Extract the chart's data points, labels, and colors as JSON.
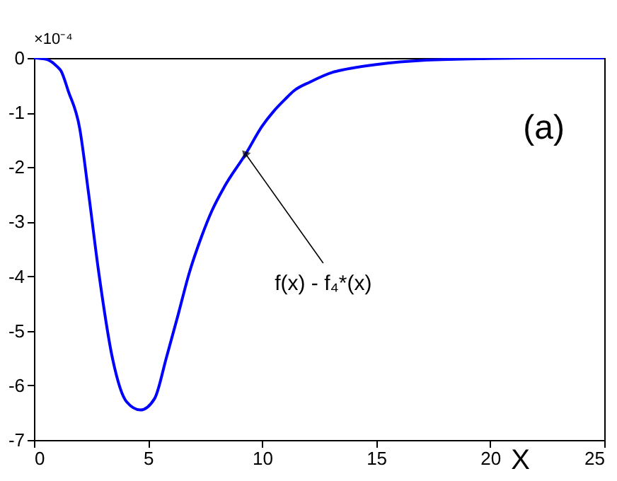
{
  "chart_data": {
    "type": "line",
    "xlabel": "X",
    "x": [
      0,
      0.5,
      1,
      1.19,
      1.5,
      2.0,
      2.4,
      2.83,
      3.44,
      4.06,
      4.67,
      5.29,
      5.8,
      6.31,
      6.8,
      7.34,
      7.8,
      8.36,
      9.28,
      10,
      10.5,
      11.0,
      11.4,
      12.1,
      13.1,
      13.5,
      15,
      17.2,
      20,
      22.5,
      25
    ],
    "series": [
      {
        "color": "#0000ff",
        "values": [
          0,
          -0.02,
          -0.15,
          -0.24,
          -0.6,
          -1.28,
          -2.5,
          -3.9,
          -5.5,
          -6.3,
          -6.45,
          -6.24,
          -5.5,
          -4.72,
          -3.95,
          -3.28,
          -2.8,
          -2.35,
          -1.76,
          -1.25,
          -0.98,
          -0.76,
          -0.6,
          -0.44,
          -0.26,
          -0.22,
          -0.12,
          -0.04,
          -0.01,
          0,
          0
        ]
      }
    ],
    "xlim": [
      0,
      25
    ],
    "ylim": [
      -7,
      0
    ],
    "xticks": [
      0,
      5,
      10,
      15,
      20,
      25
    ],
    "yticks": [
      -7,
      -6,
      -5,
      -4,
      -3,
      -2,
      -1,
      0
    ],
    "grid": false,
    "marker": "none",
    "line_style": "solid",
    "annotations": [
      "×10⁻⁴",
      "(a)",
      {
        "text": "f(x) - f₄*(x)",
        "x": 9.28,
        "y": -1.76
      }
    ]
  }
}
